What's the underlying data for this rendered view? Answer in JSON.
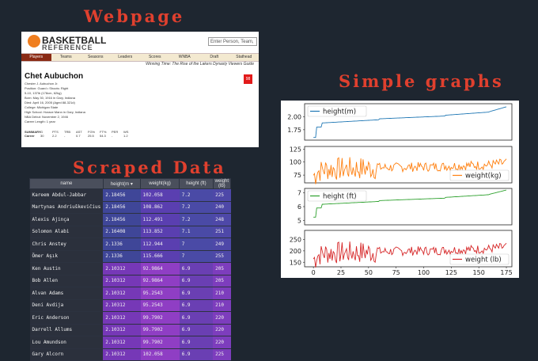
{
  "headings": {
    "webpage": "Webpage",
    "scraped": "Scraped Data",
    "graphs": "Simple graphs"
  },
  "site": {
    "logo_main": "BASKETBALL",
    "logo_sub": "REFERENCE",
    "search_placeholder": "Enter Person, Team,",
    "nav": [
      "Players",
      "Teams",
      "Seasons",
      "Leaders",
      "Scores",
      "WNBA",
      "Draft",
      "Stathead"
    ],
    "banner": "Winning Time: The Rise of the Lakers Dynasty Viewers Guide",
    "player_name": "Chet Aubuchon",
    "jersey": "98",
    "info": [
      "Chester J. Aubuchon Jr.",
      "Position: Guard • Shoots: Right",
      "5-10, 137lb (178cm, 62kg)",
      "Born: May 30, 1916 in Gary, Indiana",
      "Died: April 16, 2005 (Aged 88-321d)",
      "College: Michigan State",
      "High School: Horace Mann in Gary, Indiana",
      "NBA Debut: November 2, 1946",
      "Career Length: 1 year"
    ],
    "stats_header": [
      "SUMMARY",
      "G",
      "PTS",
      "TRB",
      "AST",
      "FG%",
      "FT%",
      "PER",
      "WS"
    ],
    "stats_row": [
      "Career",
      "30",
      "2.2",
      "-",
      "0.7",
      "25.5",
      "54.3",
      "-",
      "1.2"
    ]
  },
  "table": {
    "headers": [
      "name",
      "height(m",
      "weight(kg)",
      "height (ft)",
      "weight (lb)"
    ],
    "rows": [
      [
        "Kareem Abdul-Jabbar",
        "2.18456",
        "102.058",
        "7.2",
        "225"
      ],
      [
        "Martynas Andriuškevičius",
        "2.18456",
        "108.862",
        "7.2",
        "240"
      ],
      [
        "Alexis Ajinça",
        "2.18456",
        "112.491",
        "7.2",
        "248"
      ],
      [
        "Solomon Alabi",
        "2.16408",
        "113.852",
        "7.1",
        "251"
      ],
      [
        "Chris Anstey",
        "2.1336",
        "112.944",
        "7",
        "249"
      ],
      [
        "Ömer Aşık",
        "2.1336",
        "115.666",
        "7",
        "255"
      ],
      [
        "Ken Austin",
        "2.10312",
        "92.9864",
        "6.9",
        "205"
      ],
      [
        "Bob Allen",
        "2.10312",
        "92.9864",
        "6.9",
        "205"
      ],
      [
        "Alvan Adams",
        "2.10312",
        "95.2543",
        "6.9",
        "210"
      ],
      [
        "Deni Avdija",
        "2.10312",
        "95.2543",
        "6.9",
        "210"
      ],
      [
        "Eric Anderson",
        "2.10312",
        "99.7902",
        "6.9",
        "220"
      ],
      [
        "Darrell Allums",
        "2.10312",
        "99.7902",
        "6.9",
        "220"
      ],
      [
        "Lou Amundson",
        "2.10312",
        "99.7902",
        "6.9",
        "220"
      ],
      [
        "Gary Alcorn",
        "2.10312",
        "102.058",
        "6.9",
        "225"
      ]
    ]
  },
  "chart_data": [
    {
      "type": "line",
      "series": [
        {
          "name": "height(m)",
          "color": "#1f77b4"
        }
      ],
      "yticks": [
        1.75,
        2.0
      ],
      "ylim": [
        1.55,
        2.25
      ],
      "xlim": [
        -8,
        180
      ]
    },
    {
      "type": "line",
      "series": [
        {
          "name": "weight(kg)",
          "color": "#ff7f0e"
        }
      ],
      "yticks": [
        75,
        100,
        125
      ],
      "ylim": [
        60,
        130
      ],
      "xlim": [
        -8,
        180
      ]
    },
    {
      "type": "line",
      "series": [
        {
          "name": "height (ft)",
          "color": "#2ca02c"
        }
      ],
      "yticks": [
        5,
        6,
        7
      ],
      "ylim": [
        4.7,
        7.3
      ],
      "xlim": [
        -8,
        180
      ]
    },
    {
      "type": "line",
      "series": [
        {
          "name": "weight (lb)",
          "color": "#d62728"
        }
      ],
      "yticks": [
        150,
        200,
        250
      ],
      "ylim": [
        130,
        290
      ],
      "xlim": [
        -8,
        180
      ],
      "xticks": [
        0,
        25,
        50,
        75,
        100,
        125,
        150,
        175
      ]
    }
  ]
}
